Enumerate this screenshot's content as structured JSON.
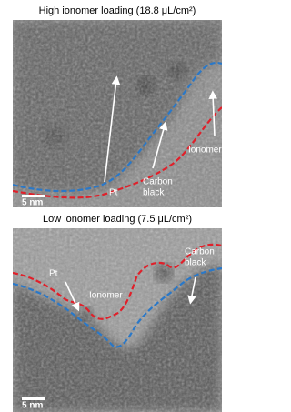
{
  "panels": [
    {
      "title": "High ionomer loading (18.8 μL/cm²)",
      "pt_label": "Pt",
      "carbon_label": [
        "Carbon",
        "black"
      ],
      "ionomer_label": "Ionomer",
      "scale_bar": "5 nm"
    },
    {
      "title": "Low ionomer loading (7.5 μL/cm²)",
      "pt_label": "Pt",
      "carbon_label": [
        "Carbon",
        "black"
      ],
      "ionomer_label": "Ionomer",
      "scale_bar": "5 nm"
    }
  ]
}
